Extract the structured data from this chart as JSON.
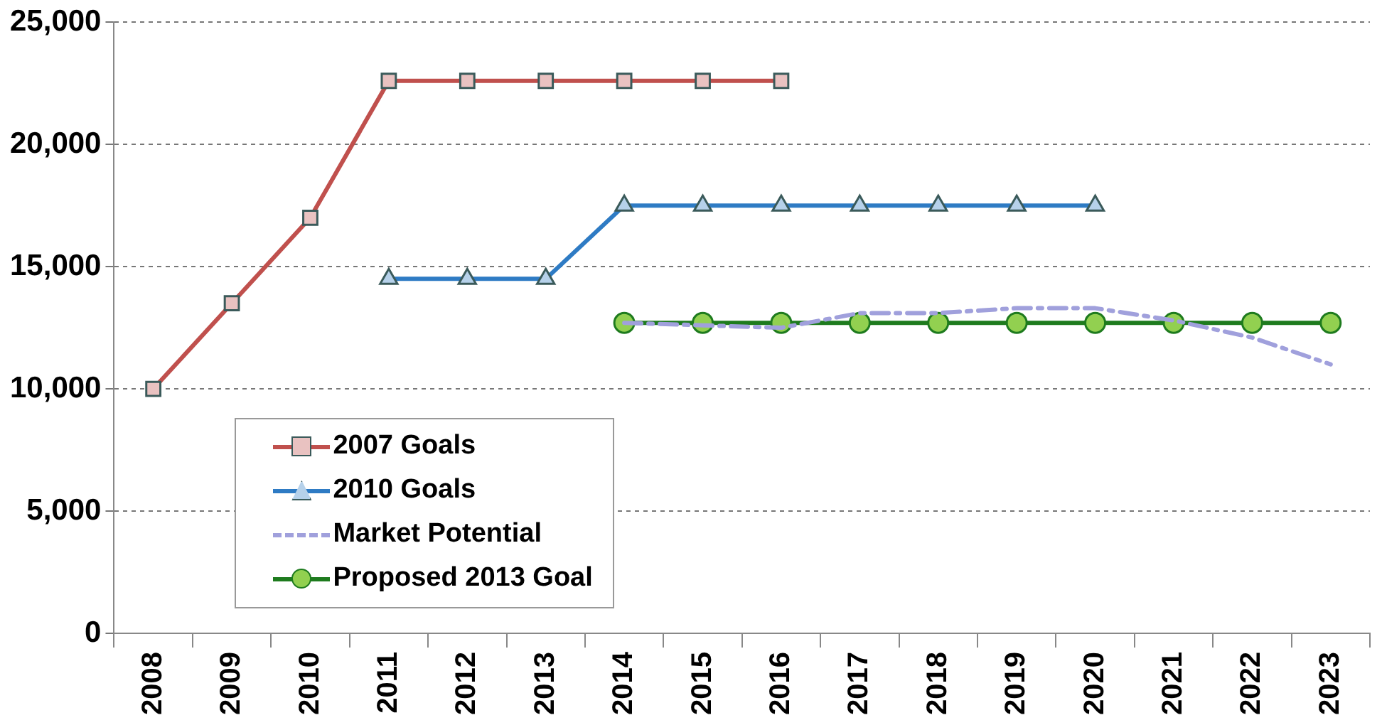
{
  "chart_data": {
    "type": "line",
    "categories": [
      "2008",
      "2009",
      "2010",
      "2011",
      "2012",
      "2013",
      "2014",
      "2015",
      "2016",
      "2017",
      "2018",
      "2019",
      "2020",
      "2021",
      "2022",
      "2023"
    ],
    "series": [
      {
        "name": "2007 Goals",
        "color": "#c0504d",
        "marker": "square",
        "line_style": "solid",
        "values": [
          10000,
          13500,
          17000,
          22600,
          22600,
          22600,
          22600,
          22600,
          22600,
          null,
          null,
          null,
          null,
          null,
          null,
          null
        ]
      },
      {
        "name": "2010 Goals",
        "color": "#2e7bc4",
        "marker": "triangle",
        "line_style": "solid",
        "values": [
          null,
          null,
          null,
          14500,
          14500,
          14500,
          17500,
          17500,
          17500,
          17500,
          17500,
          17500,
          17500,
          null,
          null,
          null
        ]
      },
      {
        "name": "Market Potential",
        "color": "#a0a0dc",
        "marker": "none",
        "line_style": "dashed",
        "values": [
          null,
          null,
          null,
          null,
          null,
          null,
          12700,
          12600,
          12500,
          13100,
          13100,
          13300,
          13300,
          12800,
          12100,
          11000
        ]
      },
      {
        "name": "Proposed 2013 Goal",
        "color": "#1e7b1e",
        "marker": "circle",
        "line_style": "solid",
        "values": [
          null,
          null,
          null,
          null,
          null,
          null,
          12700,
          12700,
          12700,
          12700,
          12700,
          12700,
          12700,
          12700,
          12700,
          12700
        ]
      }
    ],
    "ylim": [
      0,
      25000
    ],
    "yticks": [
      {
        "value": 0,
        "label": "0"
      },
      {
        "value": 5000,
        "label": "5,000"
      },
      {
        "value": 10000,
        "label": "10,000"
      },
      {
        "value": 15000,
        "label": "15,000"
      },
      {
        "value": 20000,
        "label": "20,000"
      },
      {
        "value": 25000,
        "label": "25,000"
      }
    ],
    "grid": "y",
    "legend": "bottom left"
  }
}
